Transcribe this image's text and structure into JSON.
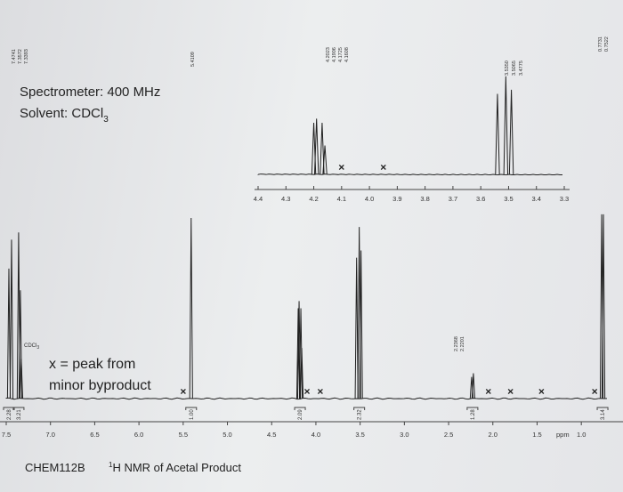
{
  "spectrometer": {
    "freq_line": "Spectrometer: 400 MHz",
    "solvent_label": "Solvent: CDCl",
    "solvent_sub": "3"
  },
  "legend": {
    "line1": "x = peak from",
    "line2": "minor byproduct"
  },
  "labels": {
    "solvent_peak": "CDCl",
    "solvent_peak_sub": "3",
    "course": "CHEM112B",
    "title_sup": "1",
    "title_rest": "H NMR of Acetal Product",
    "ppm_unit": "ppm"
  },
  "chart_data": {
    "type": "line",
    "title": "1H NMR of Acetal Product",
    "xlabel": "ppm",
    "main_axis": {
      "xlim": [
        7.5,
        0.7
      ],
      "ticks": [
        "7.5",
        "7.0",
        "6.5",
        "6.0",
        "5.5",
        "5.0",
        "4.5",
        "4.0",
        "3.5",
        "3.0",
        "2.5",
        "2.0",
        "1.5",
        "1.0"
      ],
      "tick_values": [
        7.5,
        7.0,
        6.5,
        6.0,
        5.5,
        5.0,
        4.5,
        4.0,
        3.5,
        3.0,
        2.5,
        2.0,
        1.5,
        1.0
      ]
    },
    "inset_axis": {
      "xlim": [
        4.4,
        3.3
      ],
      "ticks": [
        "4.4",
        "4.3",
        "4.2",
        "4.1",
        "4.0",
        "3.9",
        "3.8",
        "3.7",
        "3.6",
        "3.5",
        "3.4",
        "3.3"
      ],
      "tick_values": [
        4.4,
        4.3,
        4.2,
        4.1,
        4.0,
        3.9,
        3.8,
        3.7,
        3.6,
        3.5,
        3.4,
        3.3
      ]
    },
    "peaks": [
      {
        "ppm": 7.47,
        "height": 0.72
      },
      {
        "ppm": 7.44,
        "height": 0.88
      },
      {
        "ppm": 7.36,
        "height": 0.92
      },
      {
        "ppm": 7.34,
        "height": 0.6
      },
      {
        "ppm": 7.33,
        "height": 0.22
      },
      {
        "ppm": 5.41,
        "height": 1.0
      },
      {
        "ppm": 4.2,
        "height": 0.5
      },
      {
        "ppm": 4.19,
        "height": 0.54
      },
      {
        "ppm": 4.17,
        "height": 0.5
      },
      {
        "ppm": 4.16,
        "height": 0.28
      },
      {
        "ppm": 3.54,
        "height": 0.78
      },
      {
        "ppm": 3.51,
        "height": 0.95
      },
      {
        "ppm": 3.49,
        "height": 0.82
      },
      {
        "ppm": 2.24,
        "height": 0.12
      },
      {
        "ppm": 2.22,
        "height": 0.14
      },
      {
        "ppm": 0.77,
        "height": 1.02
      },
      {
        "ppm": 0.75,
        "height": 1.02
      }
    ],
    "integrations": [
      {
        "ppm": 7.47,
        "value": "2.28"
      },
      {
        "ppm": 7.36,
        "value": "3.21"
      },
      {
        "ppm": 5.41,
        "value": "1.00"
      },
      {
        "ppm": 4.18,
        "value": "2.09"
      },
      {
        "ppm": 3.51,
        "value": "2.32"
      },
      {
        "ppm": 2.23,
        "value": "1.28"
      },
      {
        "ppm": 0.76,
        "value": "3.14"
      }
    ],
    "peak_labels": [
      {
        "ppm": 7.47,
        "texts": [
          "7.4741",
          "7.3572",
          "7.3393"
        ]
      },
      {
        "ppm": 5.41,
        "texts": [
          "5.4109"
        ]
      },
      {
        "ppm": 2.23,
        "texts": [
          "2.2368",
          "2.2201"
        ]
      },
      {
        "ppm": 0.76,
        "texts": [
          "0.7731",
          "0.7522"
        ]
      }
    ],
    "inset_peak_labels": [
      {
        "ppm": 4.18,
        "texts": [
          "4.2023",
          "4.1906",
          "4.1725",
          "4.1608"
        ]
      },
      {
        "ppm": 3.51,
        "texts": [
          "3.5350",
          "3.5065",
          "3.4775"
        ]
      }
    ],
    "byproduct_marks_ppm": [
      5.5,
      4.1,
      3.95,
      2.05,
      1.8,
      1.45,
      0.85
    ]
  }
}
